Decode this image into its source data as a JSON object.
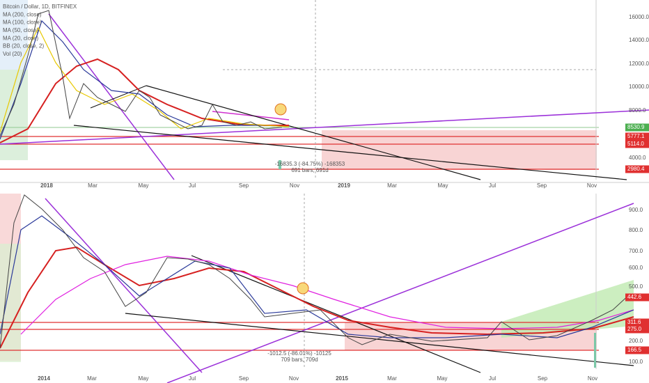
{
  "panels": [
    {
      "legend": [
        "Bitcoin / Dollar, 1D, BITFINEX",
        "MA (200, close)",
        "MA (100, close)",
        "MA (50, close)",
        "MA (20, close)",
        "BB (20, close, 2)",
        "Vol (20)"
      ],
      "x_labels": [
        "2018",
        "Mar",
        "May",
        "Jul",
        "Sep",
        "Nov",
        "2019",
        "Mar",
        "May",
        "Jul",
        "Sep",
        "Nov"
      ],
      "y_labels": [
        "16000.0",
        "14000.0",
        "12000.0",
        "10000.0",
        "8000.0",
        "4000.0"
      ],
      "price_tags": [
        "8530.9",
        "5777.1",
        "5114.0",
        "2980.4"
      ],
      "measure": [
        "-16835.3 (-84.75%) -168353",
        "691 bars, 691d"
      ]
    },
    {
      "legend": [],
      "x_labels": [
        "2014",
        "Mar",
        "May",
        "Jul",
        "Sep",
        "Nov",
        "2015",
        "Mar",
        "May",
        "Jul",
        "Sep",
        "Nov"
      ],
      "y_labels": [
        "900.0",
        "800.0",
        "700.0",
        "600.0",
        "500.0",
        "200.0",
        "100.0"
      ],
      "price_tags": [
        "442.6",
        "311.6",
        "275.0",
        "166.5"
      ],
      "measure": [
        "-1012.5 (-86.01%) -10125",
        "709 bars, 709d"
      ]
    }
  ]
}
